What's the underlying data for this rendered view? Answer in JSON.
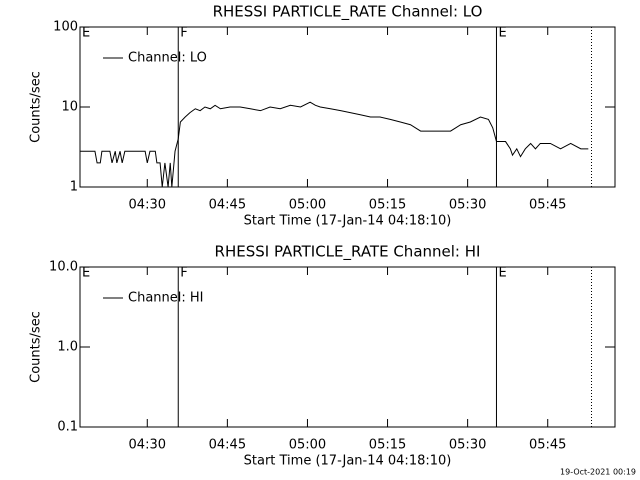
{
  "chart_data": [
    {
      "type": "line",
      "title": "RHESSI PARTICLE_RATE Channel: LO",
      "xlabel": "Start Time (17-Jan-14 04:18:10)",
      "ylabel": "Counts/sec",
      "xlim": [
        257.4,
        357.6
      ],
      "xticks": [
        {
          "value": 270,
          "label": "04:30"
        },
        {
          "value": 285,
          "label": "04:45"
        },
        {
          "value": 300,
          "label": "05:00"
        },
        {
          "value": 315,
          "label": "05:15"
        },
        {
          "value": 330,
          "label": "05:30"
        },
        {
          "value": 345,
          "label": "05:45"
        }
      ],
      "ylim": [
        1,
        100
      ],
      "yticks": [
        1,
        10,
        100
      ],
      "ylog": true,
      "grid": false,
      "legend": "upper left",
      "markers": [
        {
          "x": 257.4,
          "label": "E",
          "style": "solid"
        },
        {
          "x": 275.8,
          "label": "F",
          "style": "solid"
        },
        {
          "x": 335.4,
          "label": "E",
          "style": "solid"
        },
        {
          "x": 353.2,
          "style": "dotted"
        }
      ],
      "series": [
        {
          "name": "Channel: LO",
          "color": "#000000",
          "x": [
            257.4,
            260.2,
            260.6,
            261.2,
            261.5,
            263.0,
            263.4,
            264.0,
            264.3,
            264.9,
            265.3,
            265.8,
            266.8,
            269.6,
            270.0,
            270.5,
            271.5,
            271.8,
            272.4,
            272.8,
            273.3,
            273.9,
            274.3,
            274.6,
            275.2,
            275.8,
            276.2,
            277.1,
            278.0,
            279.0,
            279.9,
            280.8,
            281.8,
            282.7,
            283.7,
            285.5,
            287.4,
            289.3,
            291.2,
            293.0,
            294.9,
            296.8,
            298.7,
            300.5,
            301.5,
            302.4,
            304.3,
            306.2,
            308.0,
            309.9,
            311.8,
            313.6,
            315.5,
            317.4,
            319.3,
            321.2,
            323.0,
            324.9,
            326.8,
            328.7,
            330.5,
            332.4,
            333.9,
            334.7,
            335.4,
            337.1,
            338.0,
            338.4,
            339.2,
            339.9,
            340.8,
            341.8,
            342.7,
            343.6,
            345.5,
            347.4,
            349.3,
            351.2,
            352.6
          ],
          "values": [
            2.8,
            2.8,
            2.0,
            2.0,
            2.8,
            2.8,
            2.0,
            2.8,
            2.0,
            2.8,
            2.0,
            2.8,
            2.8,
            2.8,
            2.0,
            2.8,
            2.8,
            2.0,
            2.0,
            1.0,
            2.0,
            1.0,
            2.0,
            1.0,
            2.8,
            4.0,
            6.5,
            7.5,
            8.5,
            9.5,
            9.0,
            10.0,
            9.5,
            10.5,
            9.5,
            10.0,
            10.0,
            9.5,
            9.0,
            10.0,
            9.5,
            10.5,
            10.0,
            11.5,
            10.5,
            10.0,
            9.5,
            9.0,
            8.5,
            8.0,
            7.5,
            7.5,
            7.0,
            6.5,
            6.0,
            5.0,
            5.0,
            5.0,
            5.0,
            6.0,
            6.5,
            7.5,
            7.0,
            5.5,
            3.7,
            3.7,
            3.0,
            2.5,
            3.0,
            2.4,
            3.0,
            3.5,
            3.0,
            3.5,
            3.5,
            3.0,
            3.5,
            3.0,
            3.0
          ]
        }
      ]
    },
    {
      "type": "line",
      "title": "RHESSI PARTICLE_RATE Channel: HI",
      "xlabel": "Start Time (17-Jan-14 04:18:10)",
      "ylabel": "Counts/sec",
      "xlim": [
        257.4,
        357.6
      ],
      "xticks": [
        {
          "value": 270,
          "label": "04:30"
        },
        {
          "value": 285,
          "label": "04:45"
        },
        {
          "value": 300,
          "label": "05:00"
        },
        {
          "value": 315,
          "label": "05:15"
        },
        {
          "value": 330,
          "label": "05:30"
        },
        {
          "value": 345,
          "label": "05:45"
        }
      ],
      "ylim": [
        0.1,
        10
      ],
      "yticks": [
        0.1,
        {
          "value": 1,
          "label": "1.0"
        },
        {
          "value": 10,
          "label": "10.0"
        }
      ],
      "ylog": true,
      "grid": false,
      "legend": "upper left",
      "markers": [
        {
          "x": 257.4,
          "label": "E",
          "style": "solid"
        },
        {
          "x": 275.8,
          "label": "F",
          "style": "solid"
        },
        {
          "x": 335.4,
          "label": "E",
          "style": "solid"
        },
        {
          "x": 353.2,
          "style": "dotted"
        }
      ],
      "series": [
        {
          "name": "Channel: HI",
          "color": "#000000",
          "x": [],
          "values": []
        }
      ]
    }
  ],
  "footer": "19-Oct-2021 00:19"
}
